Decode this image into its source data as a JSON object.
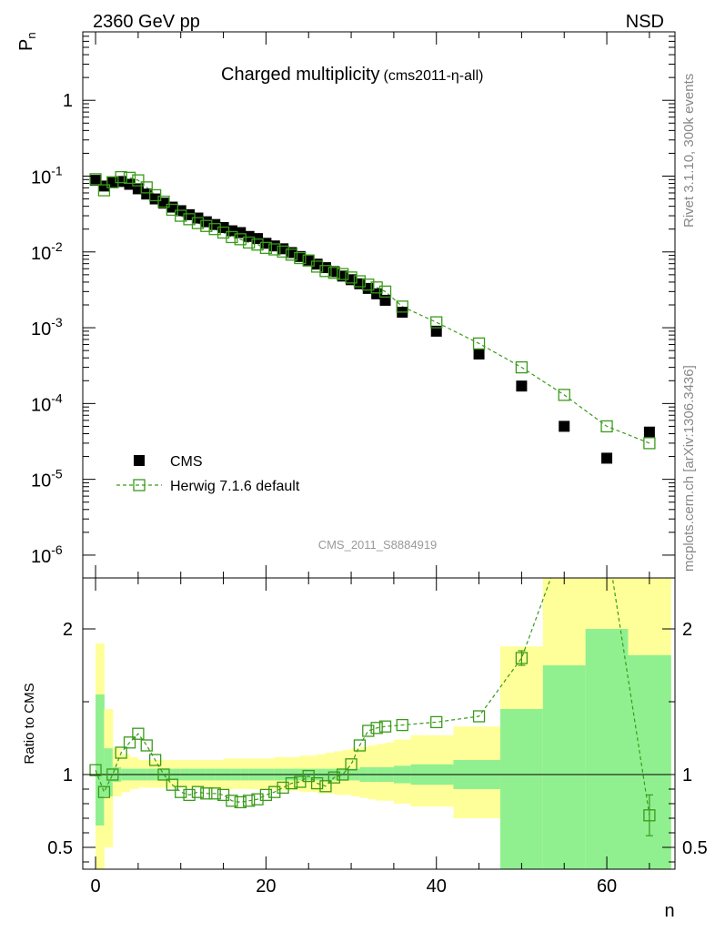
{
  "header": {
    "energy_label": "2360 GeV pp",
    "process_label": "NSD"
  },
  "side_labels": {
    "rivet": "Rivet 3.1.10,  300k events",
    "mcplots": "mcplots.cern.ch [arXiv:1306.3436]"
  },
  "colors": {
    "data": "#000000",
    "mc": "#3a9a1a",
    "band_inner": "#90f090",
    "band_outer": "#ffff99"
  },
  "chart_data": [
    {
      "type": "scatter",
      "title": "Charged multiplicity",
      "subtitle": "(cms2011-η-all)",
      "ylabel": "P",
      "ylabel_sub": "n",
      "yscale": "log",
      "ylim": [
        5e-07,
        8
      ],
      "xlim": [
        -1.5,
        68
      ],
      "watermark": "CMS_2011_S8884919",
      "ytick_labels": {
        "big": "1",
        "bases": [
          "10",
          "10",
          "10",
          "10",
          "10",
          "10"
        ],
        "exps": [
          "-1",
          "-2",
          "-3",
          "-4",
          "-5",
          "-6"
        ]
      },
      "legend": {
        "placement": "lower-left",
        "entries": [
          "CMS",
          "Herwig 7.1.6 default"
        ]
      },
      "series": [
        {
          "name": "CMS",
          "marker": "filled-square",
          "x": [
            0,
            1,
            2,
            3,
            4,
            5,
            6,
            7,
            8,
            9,
            10,
            11,
            12,
            13,
            14,
            15,
            16,
            17,
            18,
            19,
            20,
            21,
            22,
            23,
            24,
            25,
            26,
            27,
            28,
            29,
            30,
            31,
            32,
            33,
            34,
            36,
            40,
            45,
            50,
            55,
            60,
            65
          ],
          "y": [
            0.088,
            0.074,
            0.083,
            0.085,
            0.078,
            0.068,
            0.058,
            0.05,
            0.044,
            0.039,
            0.035,
            0.031,
            0.028,
            0.025,
            0.023,
            0.021,
            0.019,
            0.018,
            0.016,
            0.015,
            0.013,
            0.012,
            0.011,
            0.0098,
            0.0087,
            0.0078,
            0.0069,
            0.0062,
            0.0055,
            0.0048,
            0.0043,
            0.0038,
            0.0033,
            0.0028,
            0.0023,
            0.0016,
            0.0009,
            0.00045,
            0.00017,
            5e-05,
            1.9e-05,
            4.2e-05
          ]
        },
        {
          "name": "Herwig 7.1.6 default",
          "marker": "open-square",
          "x": [
            0,
            1,
            2,
            3,
            4,
            5,
            6,
            7,
            8,
            9,
            10,
            11,
            12,
            13,
            14,
            15,
            16,
            17,
            18,
            19,
            20,
            21,
            22,
            23,
            24,
            25,
            26,
            27,
            28,
            29,
            30,
            31,
            32,
            33,
            34,
            36,
            40,
            45,
            50,
            55,
            60,
            65
          ],
          "y": [
            0.091,
            0.065,
            0.083,
            0.097,
            0.095,
            0.088,
            0.071,
            0.056,
            0.046,
            0.036,
            0.03,
            0.027,
            0.024,
            0.022,
            0.02,
            0.018,
            0.0157,
            0.0147,
            0.0133,
            0.0125,
            0.0113,
            0.0108,
            0.0101,
            0.0092,
            0.0083,
            0.0077,
            0.0064,
            0.0056,
            0.0053,
            0.0051,
            0.0046,
            0.0041,
            0.0037,
            0.0034,
            0.003,
            0.0019,
            0.00118,
            0.00062,
            0.0003,
            0.00013,
            5e-05,
            3e-05
          ]
        }
      ]
    },
    {
      "type": "line",
      "ylabel": "Ratio to CMS",
      "xlabel": "n",
      "ylim": [
        0.35,
        2.35
      ],
      "xlim": [
        -1.5,
        68
      ],
      "xtick_labels": [
        "0",
        "20",
        "40",
        "60"
      ],
      "ytick_labels": [
        "2",
        "1",
        "0.5"
      ],
      "bands": {
        "edges": [
          0,
          1,
          2,
          3,
          4,
          5,
          6,
          7,
          8,
          9,
          10,
          11,
          12,
          13,
          14,
          15,
          16,
          17,
          18,
          19,
          20,
          21,
          22,
          23,
          24,
          25,
          26,
          27,
          28,
          29,
          30,
          31,
          32,
          33,
          34,
          35,
          37,
          42,
          47.5,
          52.5,
          57.5,
          62.5,
          67.5
        ],
        "inner_lo": [
          0.65,
          0.85,
          0.95,
          0.96,
          0.96,
          0.96,
          0.96,
          0.96,
          0.96,
          0.96,
          0.96,
          0.96,
          0.96,
          0.96,
          0.96,
          0.96,
          0.96,
          0.96,
          0.96,
          0.96,
          0.96,
          0.96,
          0.96,
          0.96,
          0.96,
          0.96,
          0.96,
          0.96,
          0.96,
          0.96,
          0.96,
          0.95,
          0.95,
          0.95,
          0.95,
          0.94,
          0.93,
          0.9,
          0.35,
          0.35,
          0.35,
          0.35
        ],
        "inner_hi": [
          1.55,
          1.18,
          1.05,
          1.04,
          1.04,
          1.04,
          1.04,
          1.04,
          1.04,
          1.04,
          1.04,
          1.04,
          1.04,
          1.04,
          1.04,
          1.04,
          1.04,
          1.04,
          1.04,
          1.04,
          1.04,
          1.04,
          1.04,
          1.04,
          1.04,
          1.04,
          1.04,
          1.04,
          1.04,
          1.04,
          1.04,
          1.05,
          1.05,
          1.05,
          1.05,
          1.06,
          1.07,
          1.1,
          1.45,
          1.75,
          2.0,
          1.82
        ],
        "outer_lo": [
          0.35,
          0.5,
          0.85,
          0.88,
          0.9,
          0.91,
          0.91,
          0.91,
          0.91,
          0.91,
          0.91,
          0.91,
          0.91,
          0.9,
          0.9,
          0.9,
          0.9,
          0.9,
          0.9,
          0.9,
          0.9,
          0.89,
          0.89,
          0.89,
          0.88,
          0.88,
          0.87,
          0.87,
          0.86,
          0.86,
          0.85,
          0.84,
          0.83,
          0.82,
          0.82,
          0.8,
          0.78,
          0.7,
          0.35,
          0.35,
          0.35,
          0.35
        ],
        "outer_hi": [
          1.9,
          1.45,
          1.18,
          1.14,
          1.12,
          1.1,
          1.1,
          1.1,
          1.1,
          1.1,
          1.1,
          1.1,
          1.1,
          1.1,
          1.1,
          1.11,
          1.11,
          1.11,
          1.11,
          1.11,
          1.11,
          1.12,
          1.12,
          1.12,
          1.13,
          1.13,
          1.14,
          1.15,
          1.16,
          1.17,
          1.18,
          1.19,
          1.2,
          1.21,
          1.22,
          1.24,
          1.27,
          1.33,
          1.88,
          2.35,
          2.35,
          2.35
        ]
      },
      "series": [
        {
          "name": "Herwig 7.1.6 default",
          "x": [
            0,
            1,
            2,
            3,
            4,
            5,
            6,
            7,
            8,
            9,
            10,
            11,
            12,
            13,
            14,
            15,
            16,
            17,
            18,
            19,
            20,
            21,
            22,
            23,
            24,
            25,
            26,
            27,
            28,
            29,
            30,
            31,
            32,
            33,
            34,
            36,
            40,
            45,
            50,
            55,
            60,
            65
          ],
          "y": [
            1.03,
            0.88,
            1.0,
            1.15,
            1.22,
            1.28,
            1.2,
            1.1,
            1.0,
            0.93,
            0.88,
            0.86,
            0.88,
            0.87,
            0.87,
            0.86,
            0.82,
            0.81,
            0.82,
            0.83,
            0.86,
            0.88,
            0.91,
            0.94,
            0.95,
            0.99,
            0.94,
            0.92,
            0.98,
            1.0,
            1.07,
            1.2,
            1.3,
            1.32,
            1.33,
            1.34,
            1.36,
            1.4,
            1.8,
            2.6,
            2.6,
            0.72
          ],
          "err": [
            0,
            0,
            0,
            0,
            0,
            0,
            0,
            0,
            0,
            0,
            0,
            0,
            0,
            0,
            0,
            0,
            0,
            0,
            0,
            0,
            0,
            0,
            0,
            0,
            0,
            0,
            0,
            0,
            0,
            0,
            0,
            0,
            0,
            0,
            0,
            0,
            0,
            0,
            0.05,
            0,
            0,
            0.14
          ]
        }
      ]
    }
  ]
}
